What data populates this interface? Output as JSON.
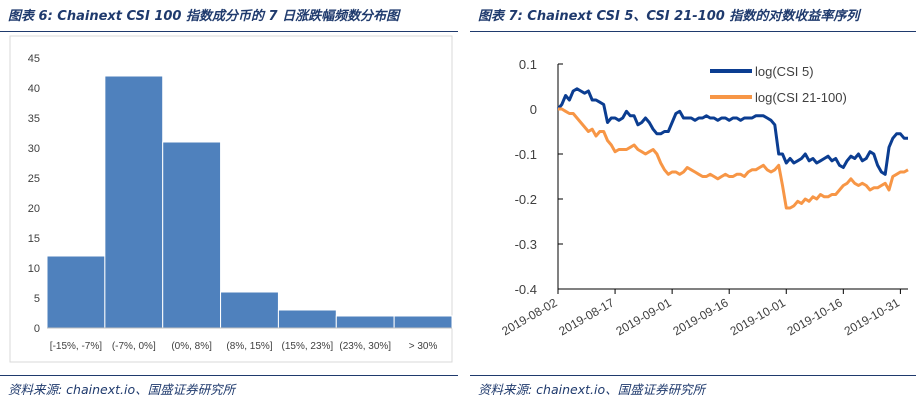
{
  "left": {
    "title": "图表 6:  Chainext CSI 100 指数成分币的 7 日涨跌幅频数分布图",
    "source": "资料来源:  chainext.io、国盛证券研究所"
  },
  "right": {
    "title": "图表 7:  Chainext CSI 5、CSI 21-100 指数的对数收益率序列",
    "source": "资料来源:  chainext.io、国盛证券研究所"
  },
  "colors": {
    "bar": "#4f81bd",
    "bar_edge": "#ffffff",
    "csi5": "#0b3d91",
    "csi21": "#f79646",
    "plot_border": "#d9d9d9",
    "axis": "#000000"
  },
  "chart_data": [
    {
      "type": "bar",
      "title": "",
      "xlabel": "",
      "ylabel": "",
      "categories": [
        "[-15%, -7%]",
        "(-7%, 0%]",
        "(0%, 8%]",
        "(8%, 15%]",
        "(15%, 23%]",
        "(23%, 30%]",
        "> 30%"
      ],
      "values": [
        12,
        42,
        31,
        6,
        3,
        2,
        2
      ],
      "ylim": [
        0,
        45
      ],
      "yticks": [
        0,
        5,
        10,
        15,
        20,
        25,
        30,
        35,
        40,
        45
      ],
      "grid": false,
      "legend": "none"
    },
    {
      "type": "line",
      "title": "",
      "xlabel": "",
      "ylabel": "",
      "x_ticks": [
        "2019-08-02",
        "2019-08-17",
        "2019-09-01",
        "2019-09-16",
        "2019-10-01",
        "2019-10-16",
        "2019-10-31"
      ],
      "x_range": [
        "2019-08-02",
        "2019-11-02"
      ],
      "ylim": [
        -0.4,
        0.1
      ],
      "yticks": [
        0.1,
        0,
        -0.1,
        -0.2,
        -0.3,
        -0.4
      ],
      "ytick_labels": [
        "0.1",
        "0",
        "-0.1",
        "-0.2",
        "-0.3",
        "-0.4"
      ],
      "legend": "top-right",
      "grid": false,
      "series": [
        {
          "name": "log(CSI 5)",
          "x": [
            "2019-08-02",
            "2019-08-03",
            "2019-08-04",
            "2019-08-05",
            "2019-08-06",
            "2019-08-07",
            "2019-08-08",
            "2019-08-09",
            "2019-08-10",
            "2019-08-11",
            "2019-08-12",
            "2019-08-13",
            "2019-08-14",
            "2019-08-15",
            "2019-08-16",
            "2019-08-17",
            "2019-08-18",
            "2019-08-19",
            "2019-08-20",
            "2019-08-21",
            "2019-08-22",
            "2019-08-23",
            "2019-08-24",
            "2019-08-25",
            "2019-08-26",
            "2019-08-27",
            "2019-08-28",
            "2019-08-29",
            "2019-08-30",
            "2019-08-31",
            "2019-09-01",
            "2019-09-02",
            "2019-09-03",
            "2019-09-04",
            "2019-09-05",
            "2019-09-06",
            "2019-09-07",
            "2019-09-08",
            "2019-09-09",
            "2019-09-10",
            "2019-09-11",
            "2019-09-12",
            "2019-09-13",
            "2019-09-14",
            "2019-09-15",
            "2019-09-16",
            "2019-09-17",
            "2019-09-18",
            "2019-09-19",
            "2019-09-20",
            "2019-09-21",
            "2019-09-22",
            "2019-09-23",
            "2019-09-24",
            "2019-09-25",
            "2019-09-26",
            "2019-09-27",
            "2019-09-28",
            "2019-09-29",
            "2019-09-30",
            "2019-10-01",
            "2019-10-02",
            "2019-10-03",
            "2019-10-04",
            "2019-10-05",
            "2019-10-06",
            "2019-10-07",
            "2019-10-08",
            "2019-10-09",
            "2019-10-10",
            "2019-10-11",
            "2019-10-12",
            "2019-10-13",
            "2019-10-14",
            "2019-10-15",
            "2019-10-16",
            "2019-10-17",
            "2019-10-18",
            "2019-10-19",
            "2019-10-20",
            "2019-10-21",
            "2019-10-22",
            "2019-10-23",
            "2019-10-24",
            "2019-10-25",
            "2019-10-26",
            "2019-10-27",
            "2019-10-28",
            "2019-10-29",
            "2019-10-30",
            "2019-10-31",
            "2019-11-01",
            "2019-11-02"
          ],
          "y": [
            0,
            0.01,
            0.03,
            0.02,
            0.04,
            0.045,
            0.04,
            0.035,
            0.04,
            0.02,
            0.02,
            0.015,
            0.01,
            -0.03,
            -0.02,
            -0.02,
            -0.025,
            -0.02,
            -0.005,
            -0.015,
            -0.015,
            -0.035,
            -0.03,
            -0.02,
            -0.03,
            -0.045,
            -0.055,
            -0.055,
            -0.05,
            -0.05,
            -0.03,
            -0.01,
            -0.005,
            -0.02,
            -0.02,
            -0.02,
            -0.025,
            -0.02,
            -0.02,
            -0.015,
            -0.02,
            -0.02,
            -0.025,
            -0.02,
            -0.02,
            -0.025,
            -0.02,
            -0.02,
            -0.025,
            -0.02,
            -0.02,
            -0.02,
            -0.015,
            -0.015,
            -0.015,
            -0.02,
            -0.025,
            -0.035,
            -0.1,
            -0.1,
            -0.12,
            -0.11,
            -0.12,
            -0.115,
            -0.11,
            -0.1,
            -0.115,
            -0.11,
            -0.12,
            -0.115,
            -0.11,
            -0.105,
            -0.115,
            -0.11,
            -0.125,
            -0.13,
            -0.115,
            -0.105,
            -0.11,
            -0.1,
            -0.115,
            -0.11,
            -0.095,
            -0.1,
            -0.125,
            -0.14,
            -0.145,
            -0.085,
            -0.065,
            -0.055,
            -0.055,
            -0.065,
            -0.065
          ]
        },
        {
          "name": "log(CSI 21-100)",
          "x": [
            "2019-08-02",
            "2019-08-03",
            "2019-08-04",
            "2019-08-05",
            "2019-08-06",
            "2019-08-07",
            "2019-08-08",
            "2019-08-09",
            "2019-08-10",
            "2019-08-11",
            "2019-08-12",
            "2019-08-13",
            "2019-08-14",
            "2019-08-15",
            "2019-08-16",
            "2019-08-17",
            "2019-08-18",
            "2019-08-19",
            "2019-08-20",
            "2019-08-21",
            "2019-08-22",
            "2019-08-23",
            "2019-08-24",
            "2019-08-25",
            "2019-08-26",
            "2019-08-27",
            "2019-08-28",
            "2019-08-29",
            "2019-08-30",
            "2019-08-31",
            "2019-09-01",
            "2019-09-02",
            "2019-09-03",
            "2019-09-04",
            "2019-09-05",
            "2019-09-06",
            "2019-09-07",
            "2019-09-08",
            "2019-09-09",
            "2019-09-10",
            "2019-09-11",
            "2019-09-12",
            "2019-09-13",
            "2019-09-14",
            "2019-09-15",
            "2019-09-16",
            "2019-09-17",
            "2019-09-18",
            "2019-09-19",
            "2019-09-20",
            "2019-09-21",
            "2019-09-22",
            "2019-09-23",
            "2019-09-24",
            "2019-09-25",
            "2019-09-26",
            "2019-09-27",
            "2019-09-28",
            "2019-09-29",
            "2019-09-30",
            "2019-10-01",
            "2019-10-02",
            "2019-10-03",
            "2019-10-04",
            "2019-10-05",
            "2019-10-06",
            "2019-10-07",
            "2019-10-08",
            "2019-10-09",
            "2019-10-10",
            "2019-10-11",
            "2019-10-12",
            "2019-10-13",
            "2019-10-14",
            "2019-10-15",
            "2019-10-16",
            "2019-10-17",
            "2019-10-18",
            "2019-10-19",
            "2019-10-20",
            "2019-10-21",
            "2019-10-22",
            "2019-10-23",
            "2019-10-24",
            "2019-10-25",
            "2019-10-26",
            "2019-10-27",
            "2019-10-28",
            "2019-10-29",
            "2019-10-30",
            "2019-10-31",
            "2019-11-01",
            "2019-11-02"
          ],
          "y": [
            0,
            0,
            -0.005,
            -0.01,
            -0.01,
            -0.02,
            -0.03,
            -0.04,
            -0.05,
            -0.045,
            -0.06,
            -0.05,
            -0.05,
            -0.07,
            -0.08,
            -0.095,
            -0.09,
            -0.09,
            -0.09,
            -0.085,
            -0.08,
            -0.09,
            -0.095,
            -0.1,
            -0.095,
            -0.09,
            -0.1,
            -0.12,
            -0.135,
            -0.145,
            -0.14,
            -0.14,
            -0.145,
            -0.14,
            -0.13,
            -0.135,
            -0.14,
            -0.145,
            -0.15,
            -0.15,
            -0.145,
            -0.15,
            -0.155,
            -0.15,
            -0.145,
            -0.15,
            -0.15,
            -0.145,
            -0.145,
            -0.15,
            -0.14,
            -0.135,
            -0.135,
            -0.13,
            -0.125,
            -0.135,
            -0.14,
            -0.135,
            -0.125,
            -0.17,
            -0.22,
            -0.22,
            -0.215,
            -0.205,
            -0.21,
            -0.2,
            -0.205,
            -0.195,
            -0.2,
            -0.19,
            -0.195,
            -0.195,
            -0.19,
            -0.19,
            -0.18,
            -0.17,
            -0.165,
            -0.155,
            -0.165,
            -0.17,
            -0.165,
            -0.17,
            -0.18,
            -0.175,
            -0.175,
            -0.17,
            -0.165,
            -0.18,
            -0.15,
            -0.145,
            -0.14,
            -0.14,
            -0.135
          ]
        }
      ]
    }
  ]
}
